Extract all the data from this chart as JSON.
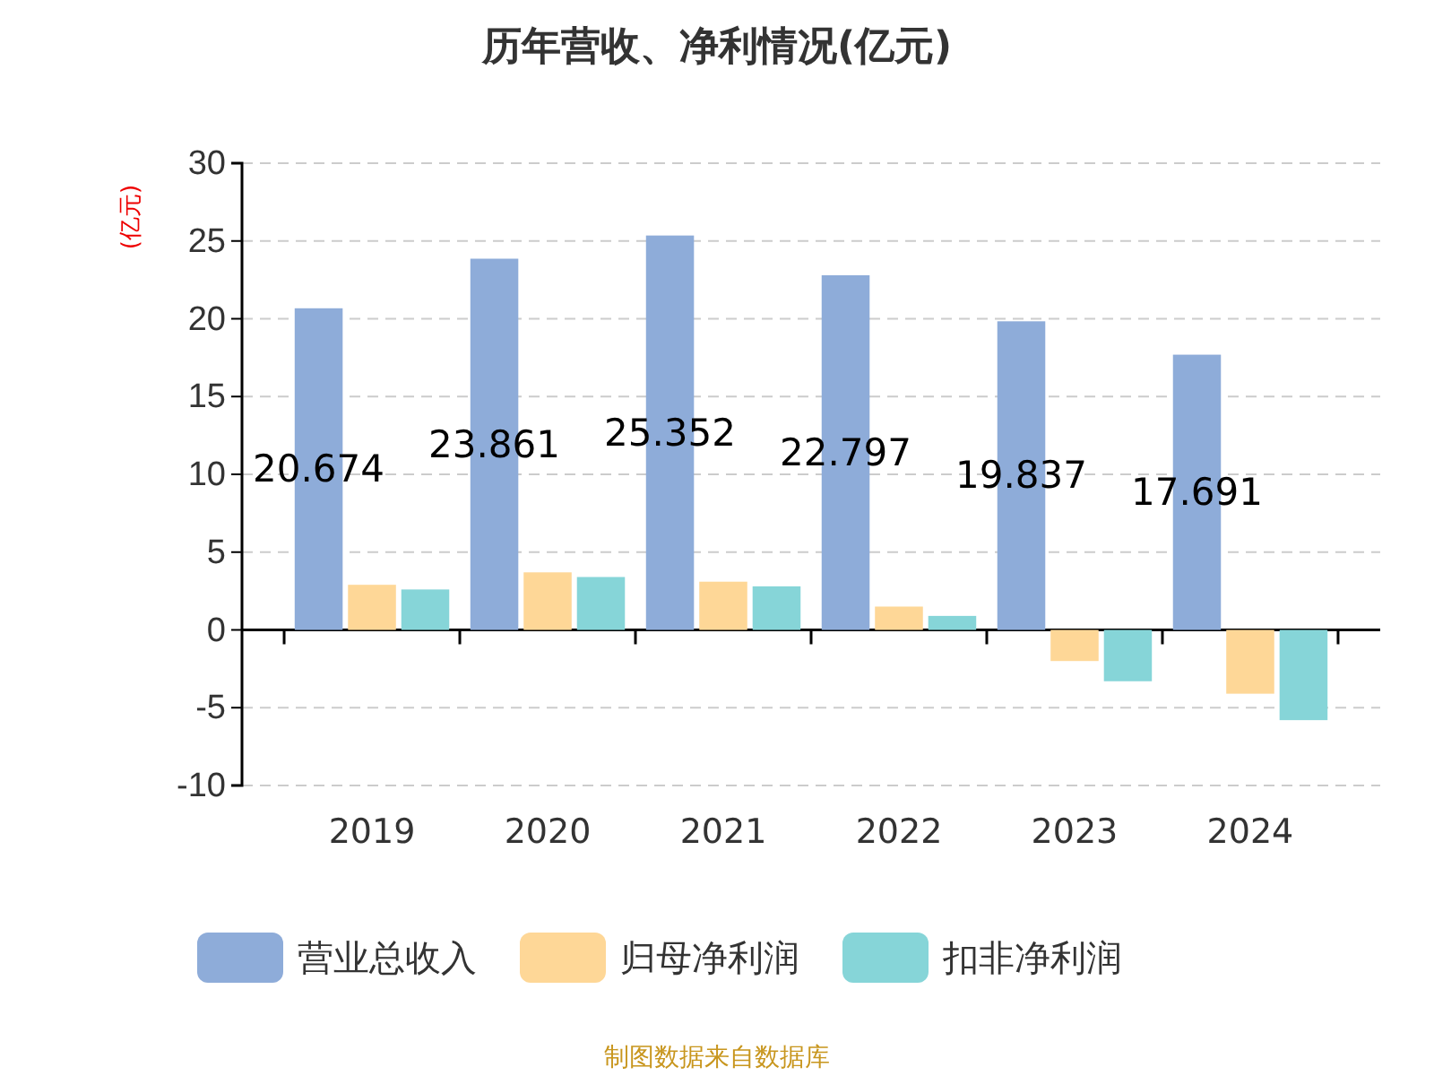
{
  "chart_data": {
    "type": "bar",
    "title": "历年营收、净利情况(亿元)",
    "ylabel": "(亿元)",
    "categories": [
      "2019",
      "2020",
      "2021",
      "2022",
      "2023",
      "2024"
    ],
    "series": [
      {
        "name": "营业总收入",
        "color": "#8eacd9",
        "values": [
          20.674,
          23.861,
          25.352,
          22.797,
          19.837,
          17.691
        ],
        "value_labels": [
          "20.674",
          "23.861",
          "25.352",
          "22.797",
          "19.837",
          "17.691"
        ]
      },
      {
        "name": "归母净利润",
        "color": "#fed797",
        "values": [
          2.9,
          3.7,
          3.1,
          1.5,
          -2.0,
          -4.1
        ]
      },
      {
        "name": "扣非净利润",
        "color": "#86d5d8",
        "values": [
          2.6,
          3.4,
          2.8,
          0.9,
          -3.3,
          -5.8
        ]
      }
    ],
    "ylim": [
      -10,
      30
    ],
    "yticks": [
      -10,
      -5,
      0,
      5,
      10,
      15,
      20,
      25,
      30
    ],
    "grid": "y",
    "legend": "bottom",
    "annotations": [
      "制图数据来自数据库"
    ]
  }
}
